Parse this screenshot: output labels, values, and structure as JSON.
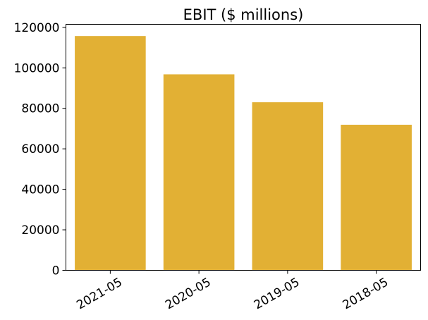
{
  "chart_data": {
    "type": "bar",
    "title": "EBIT ($ millions)",
    "categories": [
      "2021-05",
      "2020-05",
      "2019-05",
      "2018-05"
    ],
    "values": [
      115700,
      96800,
      83000,
      71900
    ],
    "xlabel": "",
    "ylabel": "",
    "ylim": [
      0,
      121500
    ],
    "yticks": [
      0,
      20000,
      40000,
      60000,
      80000,
      100000,
      120000
    ],
    "ytick_labels": [
      "0",
      "20000",
      "40000",
      "60000",
      "80000",
      "100000",
      "120000"
    ],
    "xtick_rotation": "30 degrees",
    "grid": false,
    "bar_color": "#e2b034"
  }
}
